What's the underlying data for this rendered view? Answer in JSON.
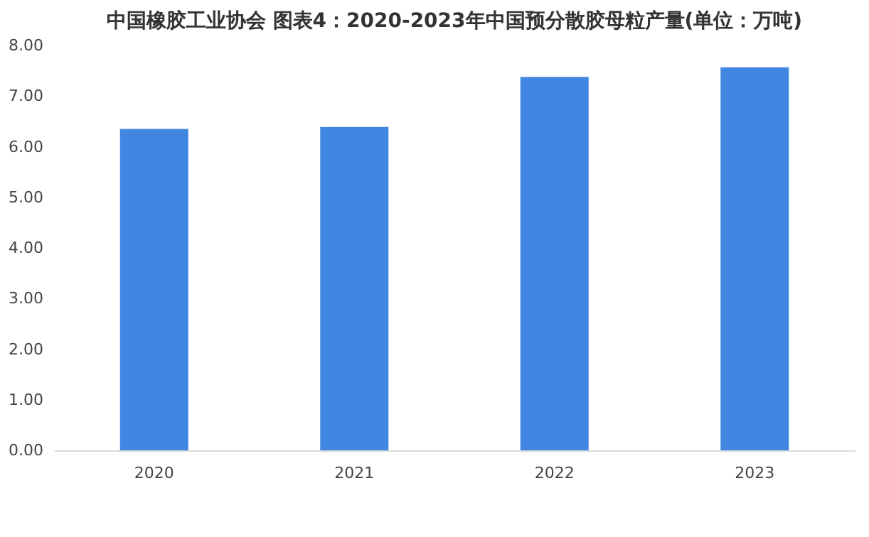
{
  "chart_data": {
    "type": "bar",
    "title": "中国橡胶工业协会 图表4：2020-2023年中国预分散胶母粒产量(单位：万吨)",
    "categories": [
      "2020",
      "2021",
      "2022",
      "2023"
    ],
    "values": [
      6.35,
      6.39,
      7.38,
      7.57
    ],
    "color": "#4186e0",
    "ylim": [
      0,
      8
    ],
    "yticks": [
      {
        "value": 0,
        "label": "0.00"
      },
      {
        "value": 1,
        "label": "1.00"
      },
      {
        "value": 2,
        "label": "2.00"
      },
      {
        "value": 3,
        "label": "3.00"
      },
      {
        "value": 4,
        "label": "4.00"
      },
      {
        "value": 5,
        "label": "5.00"
      },
      {
        "value": 6,
        "label": "6.00"
      },
      {
        "value": 7,
        "label": "7.00"
      },
      {
        "value": 8,
        "label": "8.00"
      }
    ],
    "grid": false
  }
}
